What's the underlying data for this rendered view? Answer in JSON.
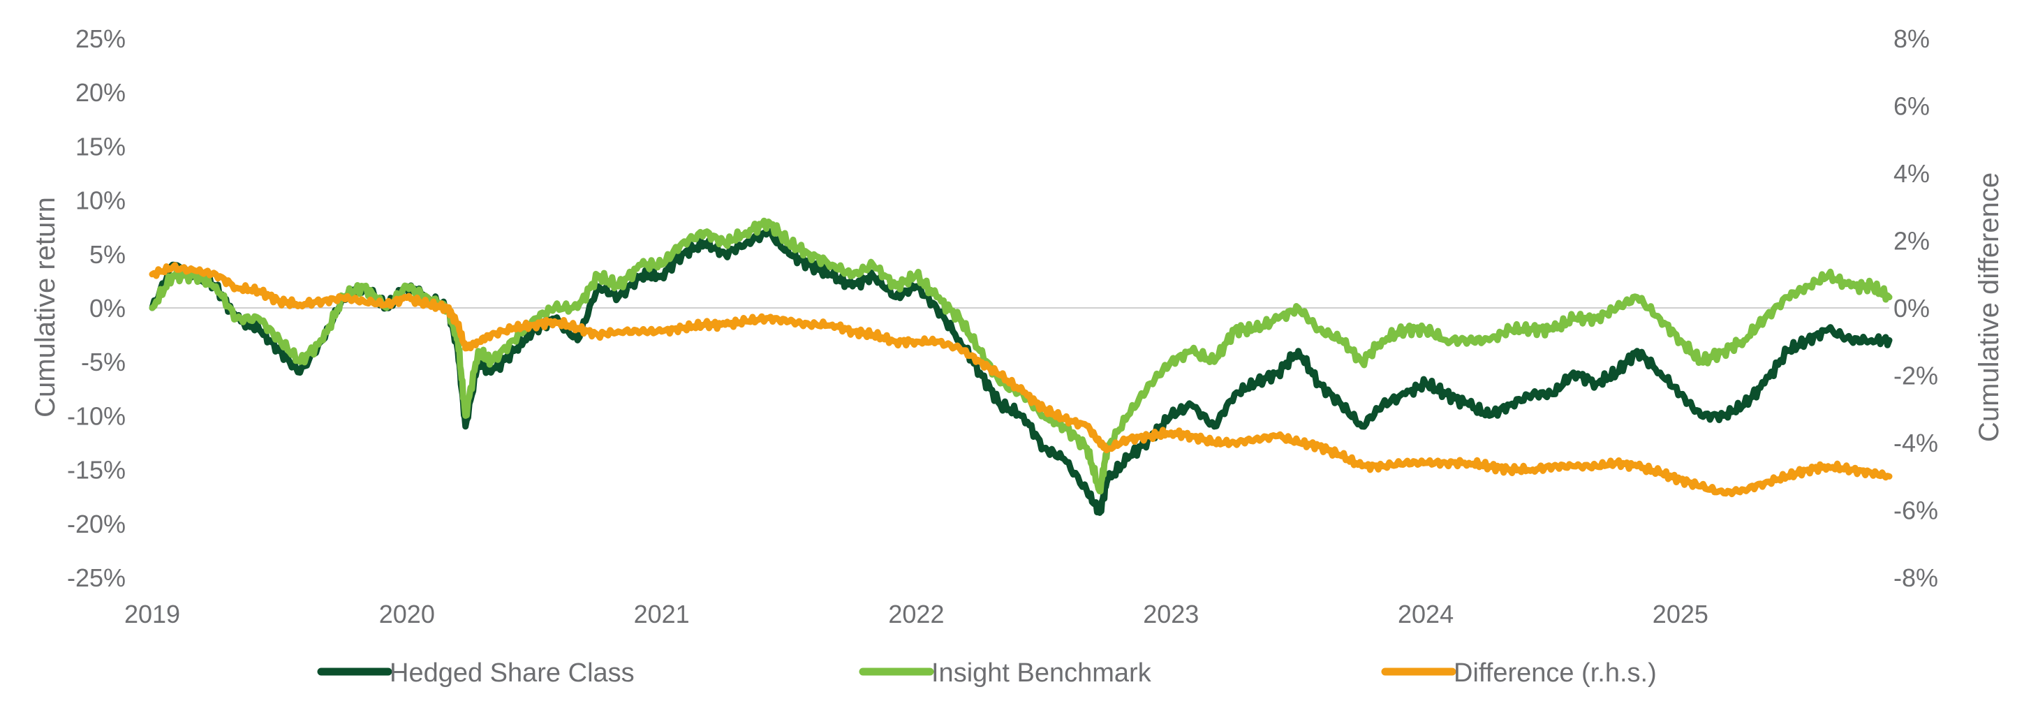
{
  "chart_data": {
    "type": "line",
    "x_start": 2019.0,
    "x_end": 2025.82,
    "x_ticks": [
      2019,
      2020,
      2021,
      2022,
      2023,
      2024,
      2025
    ],
    "x_tick_labels": [
      "2019",
      "2020",
      "2021",
      "2022",
      "2023",
      "2024",
      "2025"
    ],
    "left_axis": {
      "label": "Cumulative return",
      "range": [
        -25,
        25
      ],
      "ticks": [
        25,
        20,
        15,
        10,
        5,
        0,
        -5,
        -10,
        -15,
        -20,
        -25
      ],
      "tick_labels": [
        "25%",
        "20%",
        "15%",
        "10%",
        "5%",
        "0%",
        "-5%",
        "-10%",
        "-15%",
        "-20%",
        "-25%"
      ]
    },
    "right_axis": {
      "label": "Cumulative difference",
      "range": [
        -8,
        8
      ],
      "ticks": [
        8,
        6,
        4,
        2,
        0,
        -2,
        -4,
        -6,
        -8
      ],
      "tick_labels": [
        "8%",
        "6%",
        "4%",
        "2%",
        "0%",
        "-2%",
        "-4%",
        "-6%",
        "-8%"
      ]
    },
    "zero_line": true,
    "series": [
      {
        "name": "Hedged Share Class",
        "axis": "left",
        "color": "#0b4f2c",
        "x": [
          2019.0,
          2019.08,
          2019.17,
          2019.25,
          2019.33,
          2019.42,
          2019.5,
          2019.58,
          2019.67,
          2019.75,
          2019.83,
          2019.92,
          2020.0,
          2020.08,
          2020.16,
          2020.2,
          2020.23,
          2020.28,
          2020.33,
          2020.42,
          2020.5,
          2020.58,
          2020.67,
          2020.75,
          2020.83,
          2020.92,
          2021.0,
          2021.08,
          2021.17,
          2021.25,
          2021.33,
          2021.42,
          2021.5,
          2021.58,
          2021.67,
          2021.75,
          2021.83,
          2021.92,
          2022.0,
          2022.08,
          2022.17,
          2022.25,
          2022.33,
          2022.42,
          2022.5,
          2022.58,
          2022.67,
          2022.72,
          2022.75,
          2022.83,
          2022.92,
          2023.0,
          2023.08,
          2023.17,
          2023.25,
          2023.33,
          2023.42,
          2023.5,
          2023.58,
          2023.67,
          2023.75,
          2023.83,
          2023.92,
          2024.0,
          2024.08,
          2024.17,
          2024.25,
          2024.33,
          2024.42,
          2024.5,
          2024.58,
          2024.67,
          2024.75,
          2024.83,
          2024.92,
          2025.0,
          2025.08,
          2025.17,
          2025.25,
          2025.33,
          2025.42,
          2025.5,
          2025.58,
          2025.67,
          2025.75,
          2025.82
        ],
        "values": [
          0,
          4,
          3,
          2,
          -1,
          -2,
          -4,
          -6,
          -3,
          1,
          2,
          0,
          2,
          1,
          0,
          -4,
          -11,
          -5,
          -6,
          -4,
          -2,
          -1,
          -3,
          2,
          1,
          3,
          3,
          5,
          6,
          5,
          6,
          7,
          5,
          4,
          3,
          2,
          3,
          1,
          2,
          0,
          -3,
          -6,
          -9,
          -10,
          -13,
          -14,
          -17,
          -19,
          -16,
          -14,
          -12,
          -10,
          -9,
          -11,
          -8,
          -7,
          -6,
          -4,
          -7,
          -9,
          -11,
          -9,
          -8,
          -7,
          -8,
          -9,
          -10,
          -9,
          -8,
          -8,
          -6,
          -7,
          -6,
          -4,
          -6,
          -8,
          -10,
          -10,
          -9,
          -7,
          -4,
          -3,
          -2,
          -3,
          -3,
          -3
        ]
      },
      {
        "name": "Insight Benchmark",
        "axis": "left",
        "color": "#7dc142",
        "x": [
          2019.0,
          2019.08,
          2019.17,
          2019.25,
          2019.33,
          2019.42,
          2019.5,
          2019.58,
          2019.67,
          2019.75,
          2019.83,
          2019.92,
          2020.0,
          2020.08,
          2020.16,
          2020.2,
          2020.23,
          2020.28,
          2020.33,
          2020.42,
          2020.5,
          2020.58,
          2020.67,
          2020.75,
          2020.83,
          2020.92,
          2021.0,
          2021.08,
          2021.17,
          2021.25,
          2021.33,
          2021.42,
          2021.5,
          2021.58,
          2021.67,
          2021.75,
          2021.83,
          2021.92,
          2022.0,
          2022.08,
          2022.17,
          2022.25,
          2022.33,
          2022.42,
          2022.5,
          2022.58,
          2022.67,
          2022.72,
          2022.75,
          2022.83,
          2022.92,
          2023.0,
          2023.08,
          2023.17,
          2023.25,
          2023.33,
          2023.42,
          2023.5,
          2023.58,
          2023.67,
          2023.75,
          2023.83,
          2023.92,
          2024.0,
          2024.08,
          2024.17,
          2024.25,
          2024.33,
          2024.42,
          2024.5,
          2024.58,
          2024.67,
          2024.75,
          2024.83,
          2024.92,
          2025.0,
          2025.08,
          2025.17,
          2025.25,
          2025.33,
          2025.42,
          2025.5,
          2025.58,
          2025.67,
          2025.75,
          2025.82
        ],
        "values": [
          0,
          3,
          3,
          2,
          -1,
          -1,
          -3,
          -5,
          -3,
          1,
          2,
          0,
          2,
          1,
          0,
          -3,
          -10,
          -4,
          -5,
          -3,
          -1,
          0,
          0,
          3,
          2,
          4,
          4,
          6,
          7,
          6,
          7,
          8,
          6,
          5,
          4,
          3,
          4,
          2,
          3,
          1,
          -1,
          -4,
          -7,
          -8,
          -10,
          -11,
          -13,
          -17,
          -13,
          -10,
          -7,
          -5,
          -4,
          -5,
          -2,
          -2,
          -1,
          0,
          -2,
          -3,
          -5,
          -3,
          -2,
          -2,
          -3,
          -3,
          -3,
          -2,
          -2,
          -2,
          -1,
          -1,
          0,
          1,
          -1,
          -3,
          -5,
          -4,
          -3,
          -1,
          1,
          2,
          3,
          2,
          2,
          1
        ]
      },
      {
        "name": "Difference (r.h.s.)",
        "axis": "right",
        "color": "#f39c12",
        "x": [
          2019.0,
          2019.08,
          2019.17,
          2019.25,
          2019.33,
          2019.42,
          2019.5,
          2019.58,
          2019.67,
          2019.75,
          2019.83,
          2019.92,
          2020.0,
          2020.08,
          2020.16,
          2020.2,
          2020.23,
          2020.28,
          2020.33,
          2020.42,
          2020.5,
          2020.58,
          2020.67,
          2020.75,
          2020.83,
          2020.92,
          2021.0,
          2021.08,
          2021.17,
          2021.25,
          2021.33,
          2021.42,
          2021.5,
          2021.58,
          2021.67,
          2021.75,
          2021.83,
          2021.92,
          2022.0,
          2022.08,
          2022.17,
          2022.25,
          2022.33,
          2022.42,
          2022.5,
          2022.58,
          2022.67,
          2022.72,
          2022.75,
          2022.83,
          2022.92,
          2023.0,
          2023.08,
          2023.17,
          2023.25,
          2023.33,
          2023.42,
          2023.5,
          2023.58,
          2023.67,
          2023.75,
          2023.83,
          2023.92,
          2024.0,
          2024.08,
          2024.17,
          2024.25,
          2024.33,
          2024.42,
          2024.5,
          2024.58,
          2024.67,
          2024.75,
          2024.83,
          2024.92,
          2025.0,
          2025.08,
          2025.17,
          2025.25,
          2025.33,
          2025.42,
          2025.5,
          2025.58,
          2025.67,
          2025.75,
          2025.82
        ],
        "values": [
          1.0,
          1.2,
          1.1,
          1.0,
          0.6,
          0.5,
          0.2,
          0.1,
          0.2,
          0.3,
          0.2,
          0.1,
          0.3,
          0.1,
          0.0,
          -0.5,
          -1.2,
          -1.0,
          -0.8,
          -0.6,
          -0.5,
          -0.4,
          -0.6,
          -0.8,
          -0.7,
          -0.7,
          -0.7,
          -0.6,
          -0.5,
          -0.5,
          -0.4,
          -0.3,
          -0.4,
          -0.5,
          -0.5,
          -0.7,
          -0.8,
          -1.0,
          -1.0,
          -1.0,
          -1.2,
          -1.6,
          -2.0,
          -2.5,
          -3.0,
          -3.3,
          -3.5,
          -4.0,
          -4.2,
          -3.9,
          -3.8,
          -3.7,
          -3.8,
          -4.0,
          -4.0,
          -3.9,
          -3.8,
          -4.0,
          -4.1,
          -4.4,
          -4.7,
          -4.7,
          -4.6,
          -4.6,
          -4.6,
          -4.6,
          -4.7,
          -4.8,
          -4.8,
          -4.7,
          -4.7,
          -4.7,
          -4.6,
          -4.7,
          -4.9,
          -5.1,
          -5.3,
          -5.5,
          -5.4,
          -5.2,
          -5.0,
          -4.8,
          -4.7,
          -4.8,
          -4.9,
          -5.0
        ]
      }
    ]
  }
}
